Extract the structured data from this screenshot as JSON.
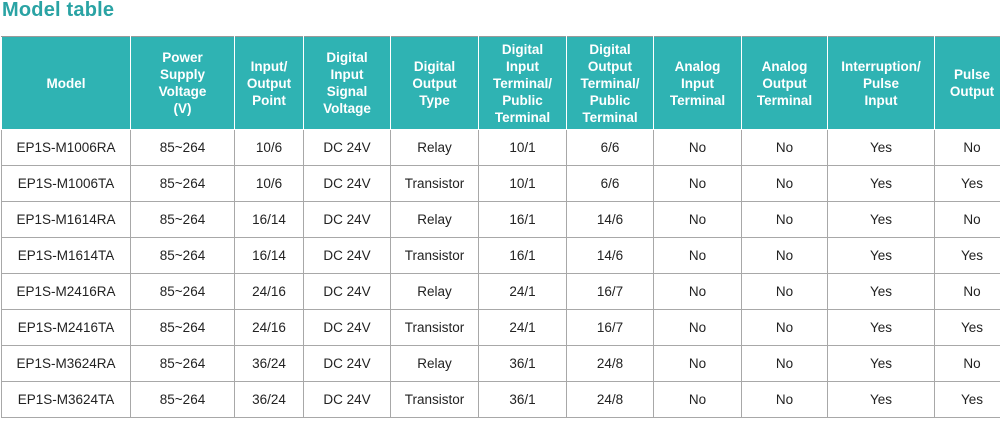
{
  "title": "Model table",
  "headers": [
    "Model",
    "Power\nSupply\nVoltage\n(V)",
    "Input/\nOutput\nPoint",
    "Digital\nInput\nSignal\nVoltage",
    "Digital\nOutput\nType",
    "Digital\nInput\nTerminal/\nPublic\nTerminal",
    "Digital\nOutput\nTerminal/\nPublic\nTerminal",
    "Analog\nInput\nTerminal",
    "Analog\nOutput\nTerminal",
    "Interruption/\nPulse\nInput",
    "Pulse\nOutput"
  ],
  "rows": [
    [
      "EP1S-M1006RA",
      "85~264",
      "10/6",
      "DC 24V",
      "Relay",
      "10/1",
      "6/6",
      "No",
      "No",
      "Yes",
      "No"
    ],
    [
      "EP1S-M1006TA",
      "85~264",
      "10/6",
      "DC 24V",
      "Transistor",
      "10/1",
      "6/6",
      "No",
      "No",
      "Yes",
      "Yes"
    ],
    [
      "EP1S-M1614RA",
      "85~264",
      "16/14",
      "DC 24V",
      "Relay",
      "16/1",
      "14/6",
      "No",
      "No",
      "Yes",
      "No"
    ],
    [
      "EP1S-M1614TA",
      "85~264",
      "16/14",
      "DC 24V",
      "Transistor",
      "16/1",
      "14/6",
      "No",
      "No",
      "Yes",
      "Yes"
    ],
    [
      "EP1S-M2416RA",
      "85~264",
      "24/16",
      "DC 24V",
      "Relay",
      "24/1",
      "16/7",
      "No",
      "No",
      "Yes",
      "No"
    ],
    [
      "EP1S-M2416TA",
      "85~264",
      "24/16",
      "DC 24V",
      "Transistor",
      "24/1",
      "16/7",
      "No",
      "No",
      "Yes",
      "Yes"
    ],
    [
      "EP1S-M3624RA",
      "85~264",
      "36/24",
      "DC 24V",
      "Relay",
      "36/1",
      "24/8",
      "No",
      "No",
      "Yes",
      "No"
    ],
    [
      "EP1S-M3624TA",
      "85~264",
      "36/24",
      "DC 24V",
      "Transistor",
      "36/1",
      "24/8",
      "No",
      "No",
      "Yes",
      "Yes"
    ]
  ],
  "colors": {
    "title": "#2aa3a4",
    "header_background": "#2fb3b3",
    "header_text": "#ffffff",
    "grid": "#a8a8a8",
    "cell_text": "#222222"
  }
}
